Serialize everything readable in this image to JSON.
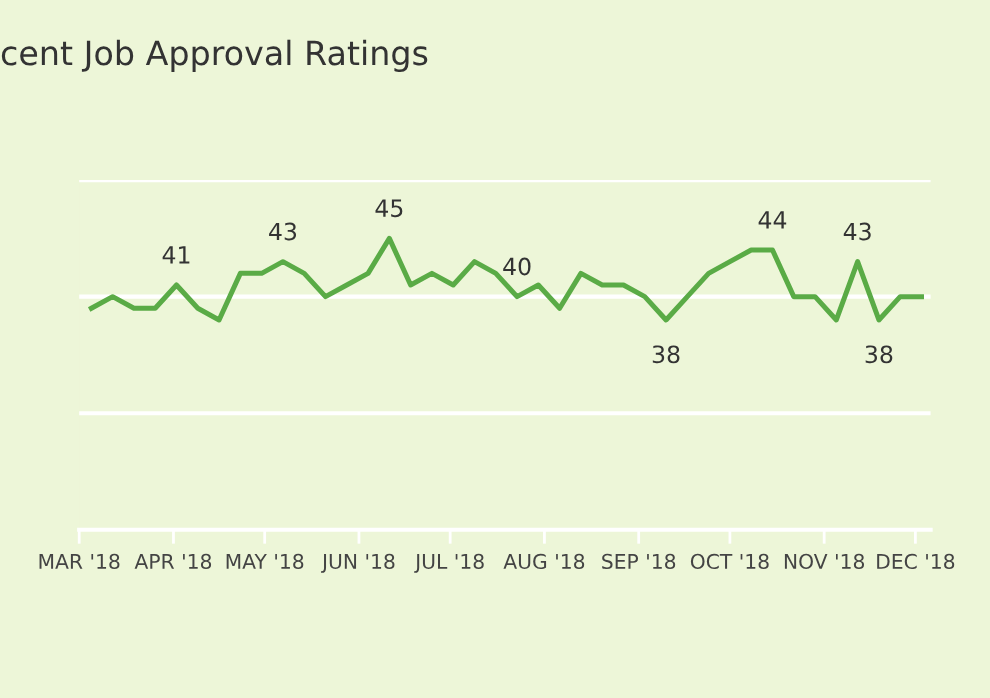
{
  "chart_data": {
    "type": "line",
    "title": "cent Job Approval Ratings",
    "x": [
      "2018-03-05",
      "2018-03-12",
      "2018-03-19",
      "2018-03-26",
      "2018-04-02",
      "2018-04-09",
      "2018-04-16",
      "2018-04-23",
      "2018-04-30",
      "2018-05-07",
      "2018-05-14",
      "2018-05-21",
      "2018-05-28",
      "2018-06-04",
      "2018-06-11",
      "2018-06-18",
      "2018-06-25",
      "2018-07-02",
      "2018-07-09",
      "2018-07-16",
      "2018-07-23",
      "2018-07-30",
      "2018-08-06",
      "2018-08-13",
      "2018-08-20",
      "2018-08-27",
      "2018-09-03",
      "2018-09-10",
      "2018-09-17",
      "2018-09-24",
      "2018-10-01",
      "2018-10-08",
      "2018-10-15",
      "2018-10-22",
      "2018-10-29",
      "2018-11-05",
      "2018-11-12",
      "2018-11-19",
      "2018-11-26",
      "2018-12-03"
    ],
    "series": [
      {
        "color": "#5aab46",
        "values": [
          39,
          40,
          39,
          39,
          41,
          39,
          38,
          42,
          42,
          43,
          42,
          40,
          41,
          42,
          45,
          41,
          42,
          41,
          43,
          42,
          40,
          41,
          39,
          42,
          41,
          41,
          40,
          38,
          40,
          42,
          43,
          44,
          44,
          40,
          40,
          38,
          43,
          38,
          40,
          40
        ],
        "value_labels": [
          null,
          null,
          null,
          null,
          "41",
          null,
          null,
          null,
          null,
          "43",
          null,
          null,
          null,
          null,
          "45",
          null,
          null,
          null,
          null,
          null,
          "40",
          null,
          null,
          null,
          null,
          null,
          null,
          "38",
          null,
          null,
          null,
          null,
          "44",
          null,
          null,
          null,
          "43",
          "38",
          null,
          null
        ]
      }
    ],
    "xlim": [
      "2018-03-01",
      "2018-12-06"
    ],
    "xticks": [
      {
        "value": "2018-03-01",
        "label": "MAR '18"
      },
      {
        "value": "2018-04-01",
        "label": "APR '18"
      },
      {
        "value": "2018-05-01",
        "label": "MAY '18"
      },
      {
        "value": "2018-06-01",
        "label": "JUN '18"
      },
      {
        "value": "2018-07-01",
        "label": "JUL '18"
      },
      {
        "value": "2018-08-01",
        "label": "AUG '18"
      },
      {
        "value": "2018-09-01",
        "label": "SEP '18"
      },
      {
        "value": "2018-10-01",
        "label": "OCT '18"
      },
      {
        "value": "2018-11-01",
        "label": "NOV '18"
      },
      {
        "value": "2018-12-01",
        "label": "DEC '18"
      }
    ],
    "ylim": [
      20,
      50
    ],
    "yticks": [
      {
        "value": 30,
        "label": null
      },
      {
        "value": 40,
        "label": null
      },
      {
        "value": 50,
        "label": null
      }
    ],
    "tick_labels": "x",
    "grid": "y",
    "marker": "none",
    "line_style": "solid"
  }
}
